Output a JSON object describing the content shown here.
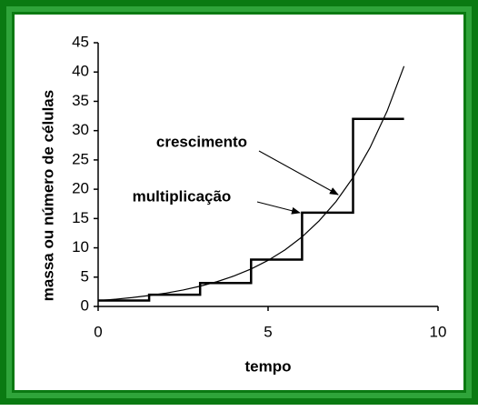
{
  "chart_data": {
    "type": "line",
    "x_label": "tempo",
    "y_label": "massa ou número de células",
    "annotations": [
      "crescimento",
      "multiplicação"
    ],
    "xlim": [
      0,
      10
    ],
    "xticks": [
      0,
      5,
      10
    ],
    "ylim": [
      0,
      45
    ],
    "yticks": [
      0,
      5,
      10,
      15,
      20,
      25,
      30,
      35,
      40,
      45
    ],
    "series": [
      {
        "name": "crescimento",
        "color": "#000000",
        "x": [
          0,
          0.5,
          1,
          1.5,
          2,
          2.5,
          3,
          3.5,
          4,
          4.5,
          5,
          5.5,
          6,
          6.5,
          7,
          7.5,
          8,
          8.5,
          9
        ],
        "values": [
          1,
          1.23,
          1.51,
          1.86,
          2.28,
          2.8,
          3.45,
          4.23,
          5.2,
          6.39,
          7.86,
          9.66,
          11.87,
          14.6,
          17.9,
          22,
          27.1,
          33.3,
          41
        ]
      },
      {
        "name": "multiplicação",
        "color": "#000000",
        "x": [
          0,
          1.5,
          1.5,
          3,
          3,
          4.5,
          4.5,
          6,
          6,
          7.5,
          7.5,
          9
        ],
        "values": [
          1,
          1,
          2,
          2,
          4,
          4,
          8,
          8,
          16,
          16,
          32,
          32
        ]
      }
    ]
  }
}
